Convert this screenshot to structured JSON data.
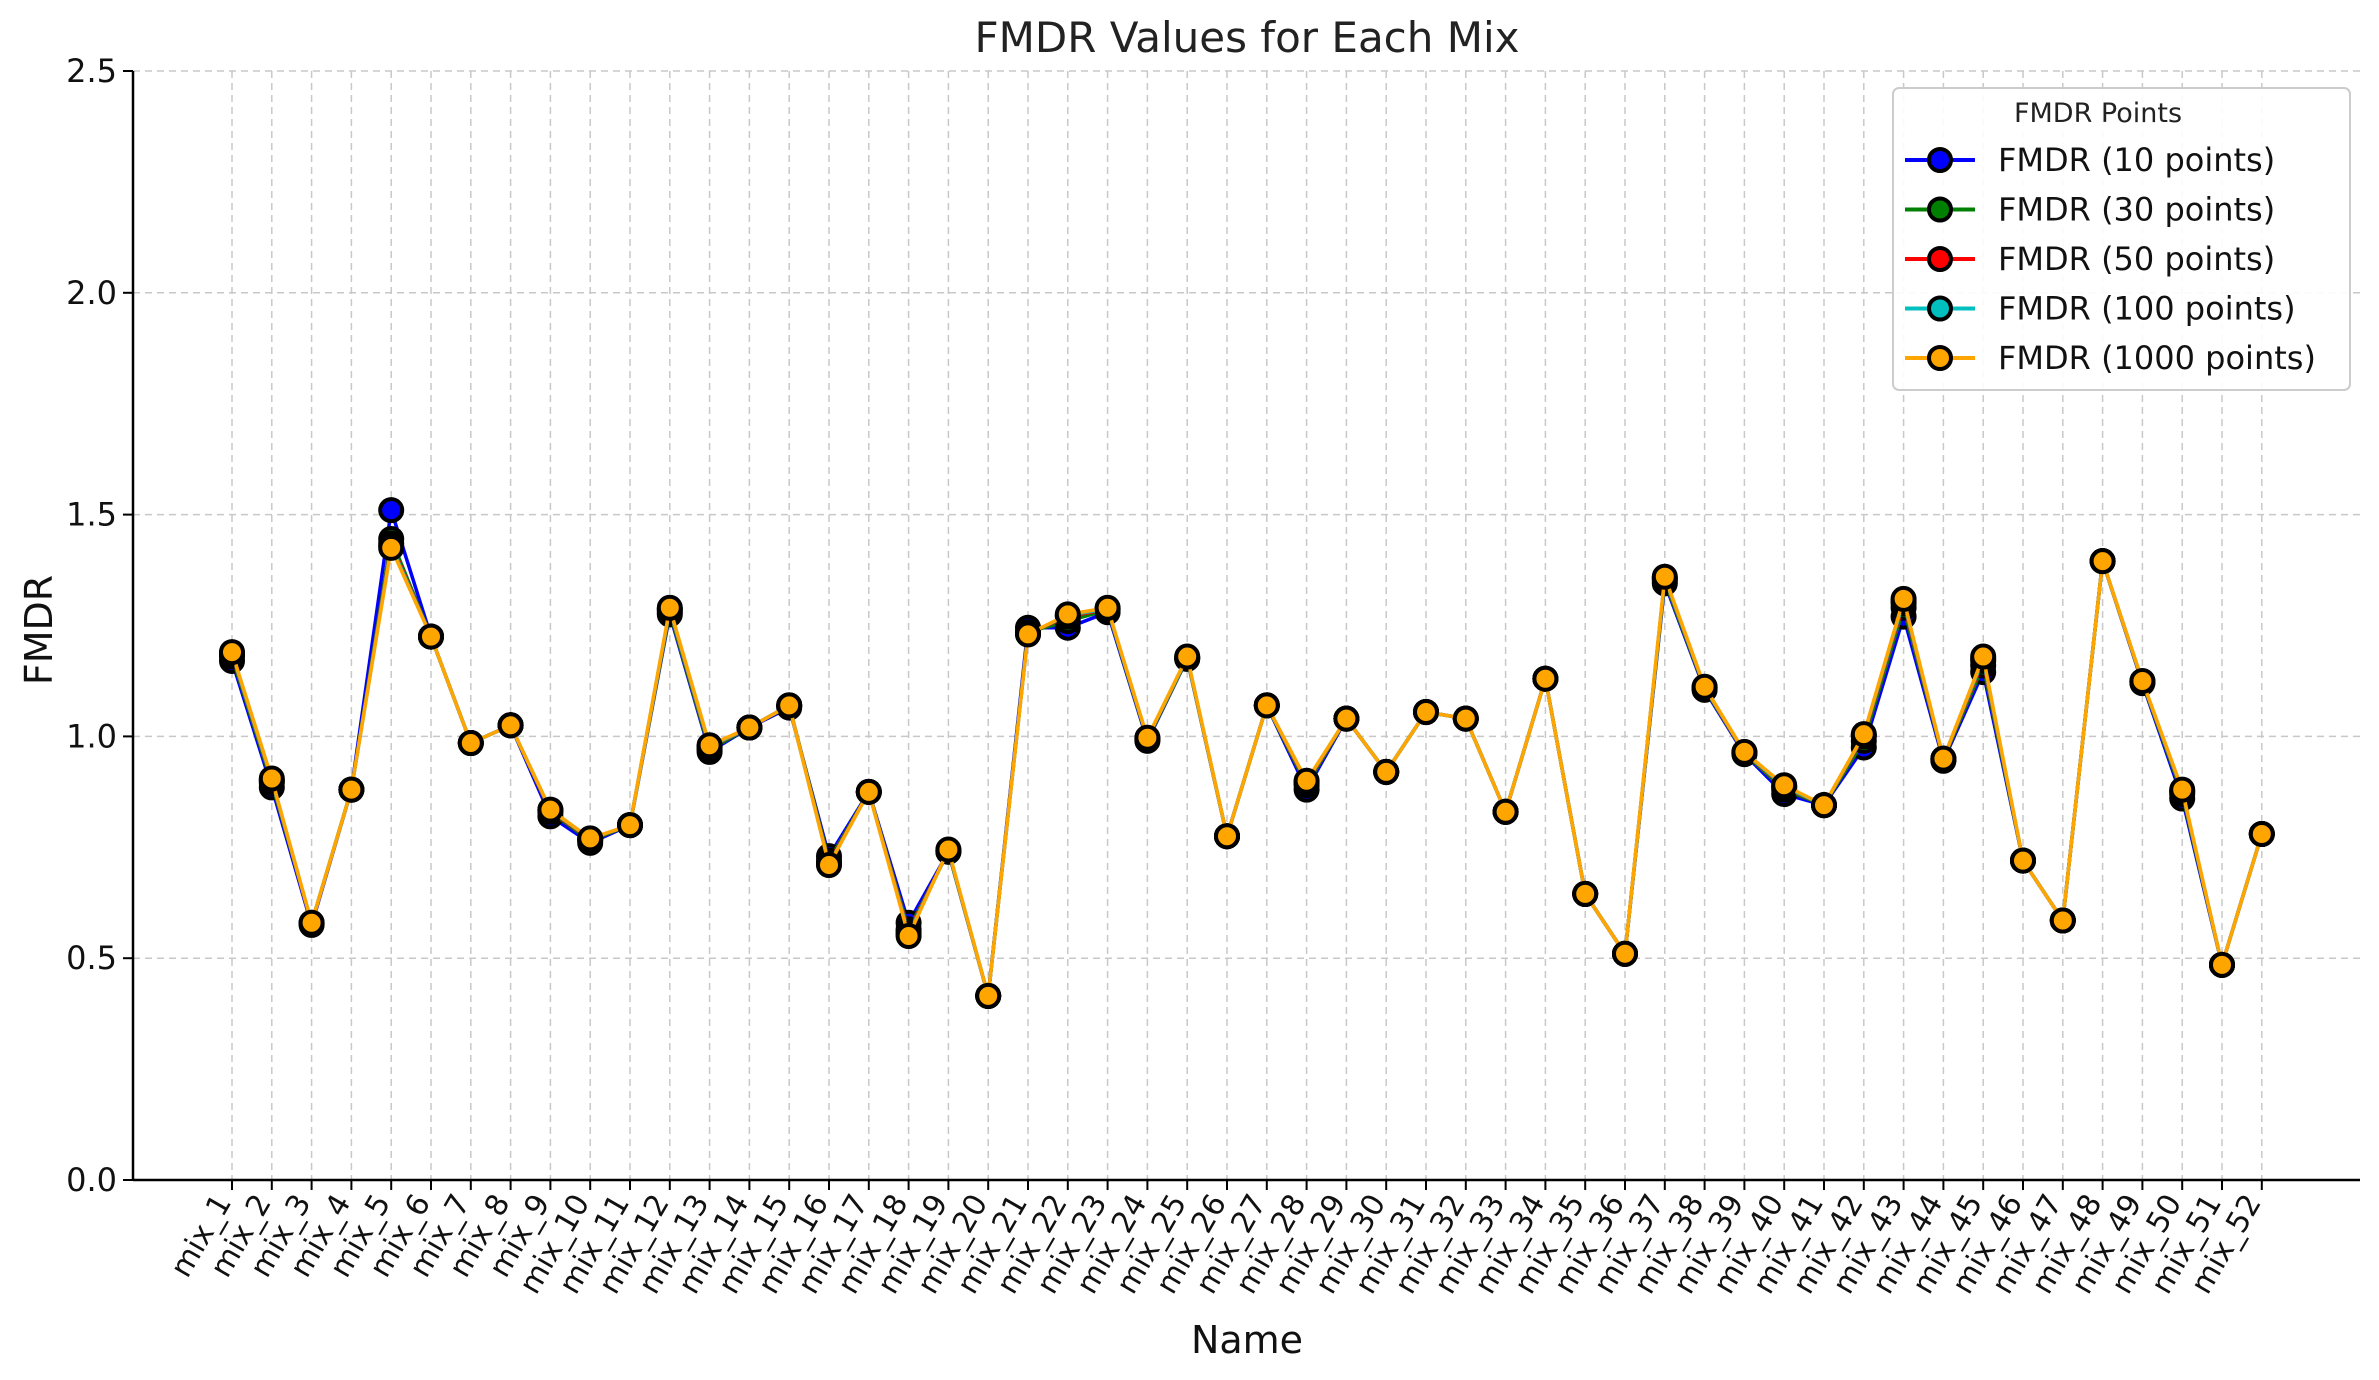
{
  "chart_data": {
    "type": "line",
    "title": "FMDR Values for Each Mix",
    "xlabel": "Name",
    "ylabel": "FMDR",
    "ylim": [
      0,
      2.5
    ],
    "yticks": [
      "0.0",
      "0.5",
      "1.0",
      "1.5",
      "2.0",
      "2.5"
    ],
    "grid": true,
    "legend_title": "FMDR Points",
    "legend_position": "upper-right",
    "categories": [
      "mix_1",
      "mix_2",
      "mix_3",
      "mix_4",
      "mix_5",
      "mix_6",
      "mix_7",
      "mix_8",
      "mix_9",
      "mix_10",
      "mix_11",
      "mix_12",
      "mix_13",
      "mix_14",
      "mix_15",
      "mix_16",
      "mix_17",
      "mix_18",
      "mix_19",
      "mix_20",
      "mix_21",
      "mix_22",
      "mix_23",
      "mix_24",
      "mix_25",
      "mix_26",
      "mix_27",
      "mix_28",
      "mix_29",
      "mix_30",
      "mix_31",
      "mix_32",
      "mix_33",
      "mix_34",
      "mix_35",
      "mix_36",
      "mix_37",
      "mix_38",
      "mix_39",
      "mix_40",
      "mix_41",
      "mix_42",
      "mix_43",
      "mix_44",
      "mix_45",
      "mix_46",
      "mix_47",
      "mix_48",
      "mix_49",
      "mix_50",
      "mix_51",
      "mix_52"
    ],
    "series": [
      {
        "name": "FMDR (10 points)",
        "color": "#0000ff",
        "values": [
          1.17,
          0.885,
          0.575,
          0.88,
          1.51,
          1.225,
          0.985,
          1.025,
          0.82,
          0.76,
          0.8,
          1.275,
          0.965,
          1.02,
          1.065,
          0.73,
          0.875,
          0.58,
          0.74,
          0.415,
          1.245,
          1.245,
          1.28,
          0.99,
          1.175,
          0.775,
          1.07,
          0.88,
          1.04,
          0.92,
          1.055,
          1.04,
          0.83,
          1.13,
          0.645,
          0.51,
          1.345,
          1.105,
          0.96,
          0.87,
          0.845,
          0.975,
          1.27,
          0.945,
          1.145,
          0.72,
          0.585,
          1.395,
          1.12,
          0.86,
          0.485,
          0.78
        ]
      },
      {
        "name": "FMDR (30 points)",
        "color": "#008000",
        "values": [
          1.18,
          0.895,
          0.58,
          0.88,
          1.445,
          1.225,
          0.985,
          1.025,
          0.83,
          0.765,
          0.8,
          1.28,
          0.97,
          1.02,
          1.07,
          0.72,
          0.875,
          0.565,
          0.74,
          0.415,
          1.235,
          1.26,
          1.285,
          0.993,
          1.175,
          0.775,
          1.07,
          0.89,
          1.04,
          0.92,
          1.055,
          1.04,
          0.83,
          1.13,
          0.645,
          0.51,
          1.35,
          1.108,
          0.962,
          0.88,
          0.845,
          0.99,
          1.29,
          0.948,
          1.16,
          0.72,
          0.585,
          1.395,
          1.122,
          0.87,
          0.485,
          0.78
        ]
      },
      {
        "name": "FMDR (50 points)",
        "color": "#ff0000",
        "values": [
          1.185,
          0.9,
          0.578,
          0.88,
          1.435,
          1.225,
          0.985,
          1.025,
          0.832,
          0.768,
          0.8,
          1.285,
          0.975,
          1.02,
          1.07,
          0.715,
          0.875,
          0.56,
          0.742,
          0.415,
          1.232,
          1.27,
          1.287,
          0.995,
          1.177,
          0.775,
          1.07,
          0.895,
          1.04,
          0.92,
          1.055,
          1.04,
          0.83,
          1.13,
          0.645,
          0.51,
          1.355,
          1.11,
          0.963,
          0.885,
          0.845,
          1.0,
          1.3,
          0.949,
          1.17,
          0.72,
          0.585,
          1.395,
          1.123,
          0.875,
          0.485,
          0.78
        ]
      },
      {
        "name": "FMDR (100 points)",
        "color": "#00bfbf",
        "values": [
          1.187,
          0.902,
          0.579,
          0.88,
          1.43,
          1.225,
          0.985,
          1.025,
          0.834,
          0.769,
          0.8,
          1.287,
          0.977,
          1.02,
          1.07,
          0.712,
          0.875,
          0.555,
          0.743,
          0.415,
          1.231,
          1.273,
          1.288,
          0.996,
          1.178,
          0.775,
          1.07,
          0.898,
          1.04,
          0.92,
          1.055,
          1.04,
          0.83,
          1.13,
          0.645,
          0.51,
          1.357,
          1.111,
          0.964,
          0.887,
          0.845,
          1.003,
          1.305,
          0.95,
          1.175,
          0.72,
          0.585,
          1.395,
          1.124,
          0.877,
          0.485,
          0.78
        ]
      },
      {
        "name": "FMDR (1000 points)",
        "color": "#ffa500",
        "values": [
          1.19,
          0.905,
          0.58,
          0.88,
          1.425,
          1.225,
          0.985,
          1.025,
          0.835,
          0.77,
          0.8,
          1.29,
          0.98,
          1.02,
          1.07,
          0.71,
          0.875,
          0.55,
          0.745,
          0.415,
          1.23,
          1.275,
          1.29,
          0.997,
          1.18,
          0.775,
          1.07,
          0.9,
          1.04,
          0.92,
          1.055,
          1.04,
          0.83,
          1.13,
          0.645,
          0.51,
          1.36,
          1.112,
          0.965,
          0.89,
          0.845,
          1.005,
          1.31,
          0.95,
          1.18,
          0.72,
          0.585,
          1.395,
          1.125,
          0.88,
          0.485,
          0.78
        ]
      }
    ]
  }
}
